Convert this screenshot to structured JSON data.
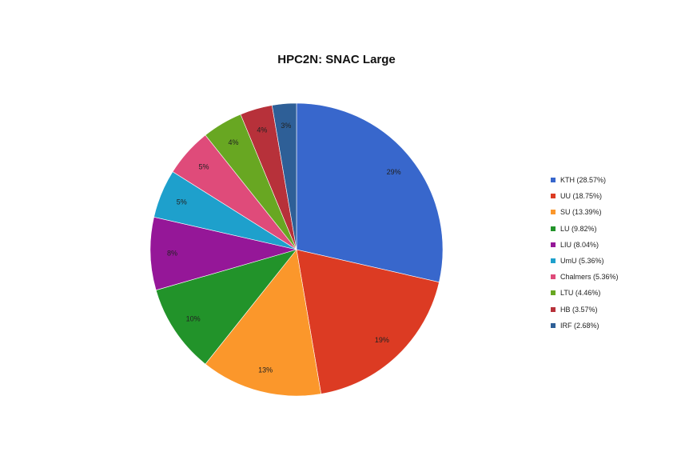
{
  "chart_data": {
    "type": "pie",
    "title": "HPC2N: SNAC Large",
    "legend_position": "right",
    "categories": [
      "KTH",
      "UU",
      "SU",
      "LU",
      "LIU",
      "UmU",
      "Chalmers",
      "LTU",
      "HB",
      "IRF"
    ],
    "values": [
      28.57,
      18.75,
      13.39,
      9.82,
      8.04,
      5.36,
      5.36,
      4.46,
      3.57,
      2.68
    ],
    "slice_labels": [
      "29%",
      "19%",
      "13%",
      "10%",
      "8%",
      "5%",
      "5%",
      "4%",
      "4%",
      "3%"
    ],
    "legend_labels": [
      "KTH (28.57%)",
      "UU (18.75%)",
      "SU (13.39%)",
      "LU (9.82%)",
      "LIU (8.04%)",
      "UmU (5.36%)",
      "Chalmers (5.36%)",
      "LTU (4.46%)",
      "HB (3.57%)",
      "IRF (2.68%)"
    ],
    "colors": [
      "#3867cc",
      "#dc3b23",
      "#fb972b",
      "#22932a",
      "#951798",
      "#1ea0cc",
      "#df4b7a",
      "#68a722",
      "#b7313a",
      "#2e5f97"
    ]
  }
}
